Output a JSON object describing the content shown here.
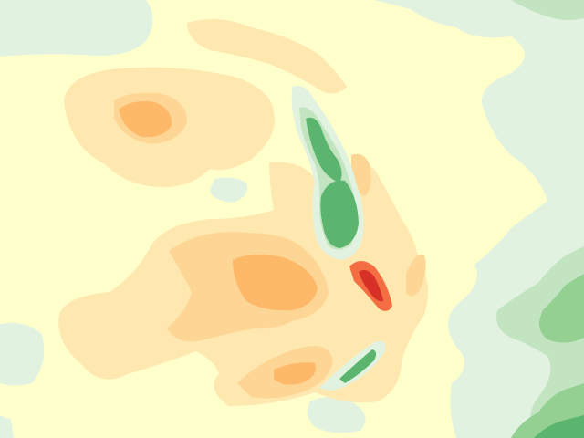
{
  "map": {
    "kind": "filled-contour-field",
    "colors": {
      "background": "#ffffcc",
      "pale_orange": "#fee8b0",
      "light_orange": "#fdd696",
      "mid_orange": "#fdb868",
      "dark_orange": "#fca255",
      "red_orange": "#f46d43",
      "red": "#d73027",
      "pale_green": "#e2f2e0",
      "light_green": "#c2e4c0",
      "mid_green": "#93d092",
      "green": "#5cb56e",
      "dark_green": "#2fa358"
    }
  }
}
